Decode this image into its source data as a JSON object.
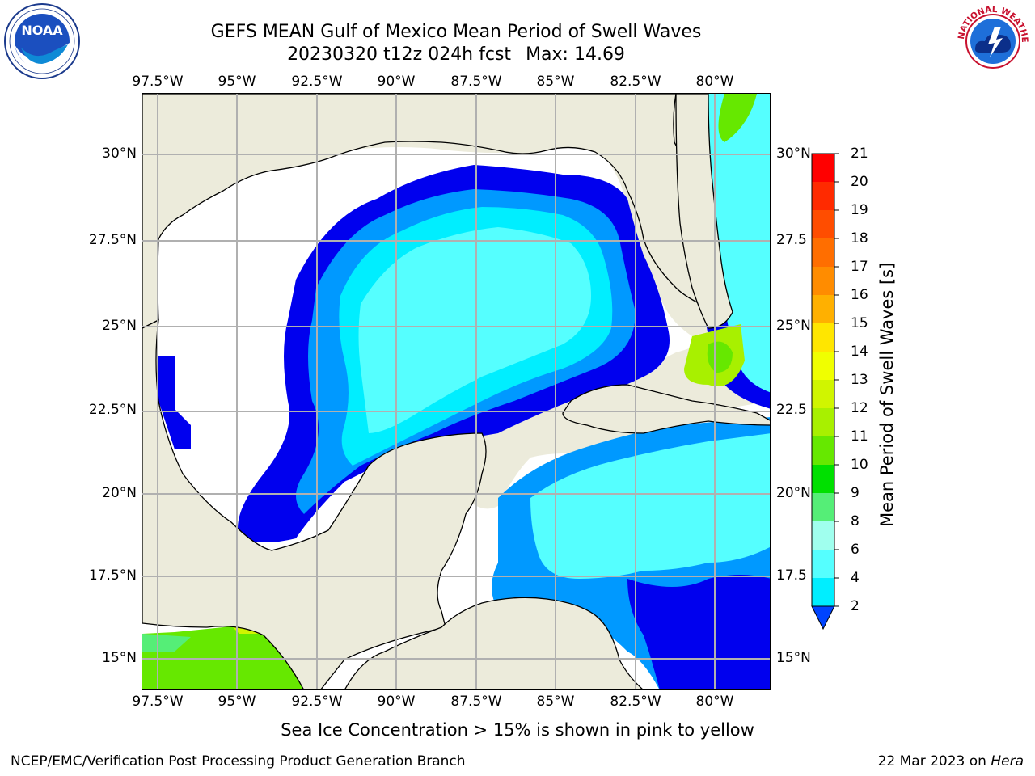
{
  "title_line1": "GEFS MEAN Gulf of Mexico Mean Period of Swell Waves",
  "title_date": "20230320 t12z 024h fcst",
  "title_max": "Max: 14.69",
  "x_ticks": [
    "97.5°W",
    "95°W",
    "92.5°W",
    "90°W",
    "87.5°W",
    "85°W",
    "82.5°W",
    "80°W"
  ],
  "y_ticks_left": [
    "30°N",
    "27.5°N",
    "25°N",
    "22.5°N",
    "20°N",
    "17.5°N",
    "15°N"
  ],
  "y_ticks_right": [
    "30°N",
    "27.5",
    "25°N",
    "22.5",
    "20°N",
    "17.5",
    "15°N"
  ],
  "colorbar": {
    "title": "Mean Period of Swell Waves [s]",
    "ticks": [
      "21",
      "20",
      "19",
      "18",
      "17",
      "16",
      "15",
      "14",
      "13",
      "12",
      "11",
      "10",
      "9",
      "8",
      "6",
      "4",
      "2"
    ],
    "colors": [
      "#ff0000",
      "#ff2a00",
      "#ff4d00",
      "#ff6e00",
      "#ff8c00",
      "#ffb000",
      "#ffe600",
      "#f0ff00",
      "#d0f500",
      "#a8f000",
      "#66e800",
      "#00e000",
      "#55ee77",
      "#a0ffee",
      "#55ffff",
      "#00eeff",
      "#00aaff",
      "#0044ff"
    ]
  },
  "note": "Sea Ice Concentration > 15% is shown in pink to yellow",
  "footer_left": "NCEP/EMC/Verification Post Processing Product Generation Branch",
  "footer_date": "22 Mar 2023 on ",
  "footer_host": "Hera",
  "logos": {
    "noaa_text": "NOAA",
    "nws_text": "NATIONAL WEATHER SERVICE"
  },
  "colors": {
    "land": "#ecebdb",
    "ocean_white": "#ffffff",
    "blue_low": "#0000ee",
    "cyan": "#00ffff",
    "grid": "#b0b0b0"
  }
}
